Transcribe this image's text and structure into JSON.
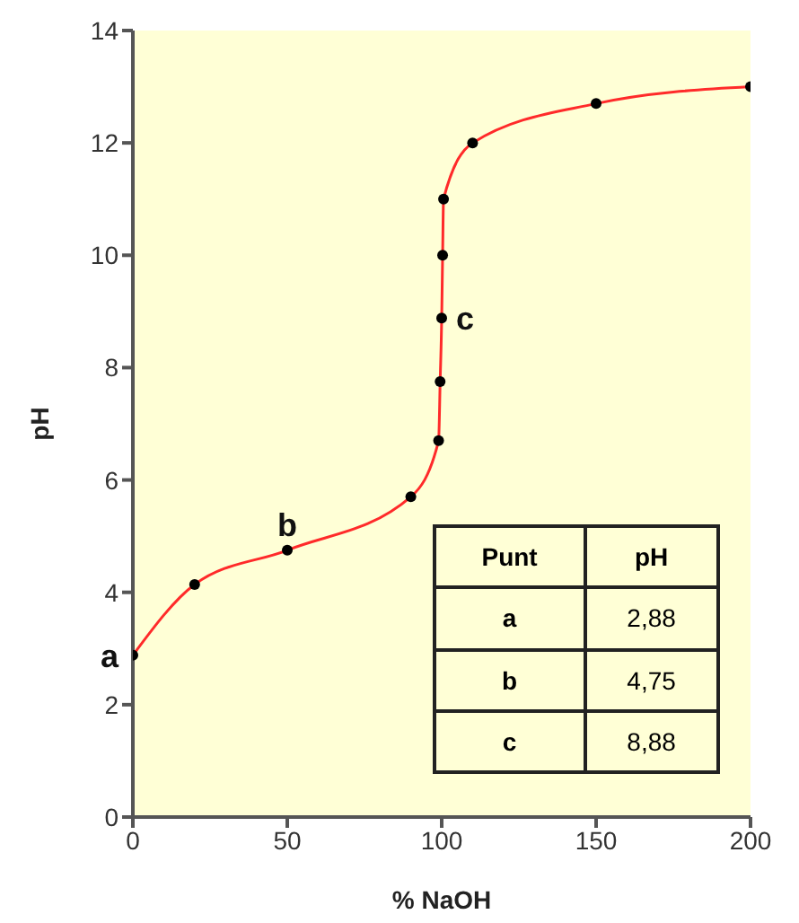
{
  "chart_data": {
    "type": "line",
    "xlabel": "% NaOH",
    "ylabel": "pH",
    "x": [
      0,
      20,
      50,
      90,
      99,
      99.5,
      100,
      100.3,
      100.6,
      110,
      150,
      200
    ],
    "series": [
      {
        "color": "#ff2a2a",
        "values": [
          2.88,
          4.14,
          4.75,
          5.7,
          6.7,
          7.75,
          8.88,
          10,
          11,
          12,
          12.7,
          13
        ]
      }
    ],
    "marker": "circle",
    "line_style": "solid",
    "xlim": [
      0,
      200
    ],
    "xticks": [
      0,
      50,
      100,
      150,
      200
    ],
    "ylim": [
      0,
      14
    ],
    "yticks": [
      0,
      2,
      4,
      6,
      8,
      10,
      12,
      14
    ],
    "annotations": [
      {
        "text": "a",
        "x": 0,
        "y": 2.88
      },
      {
        "text": "b",
        "x": 50,
        "y": 4.75
      },
      {
        "text": "c",
        "x": 100,
        "y": 8.88
      },
      "Punt",
      "pH",
      "a",
      "2,88",
      "b",
      "4,75",
      "c",
      "8,88"
    ]
  }
}
